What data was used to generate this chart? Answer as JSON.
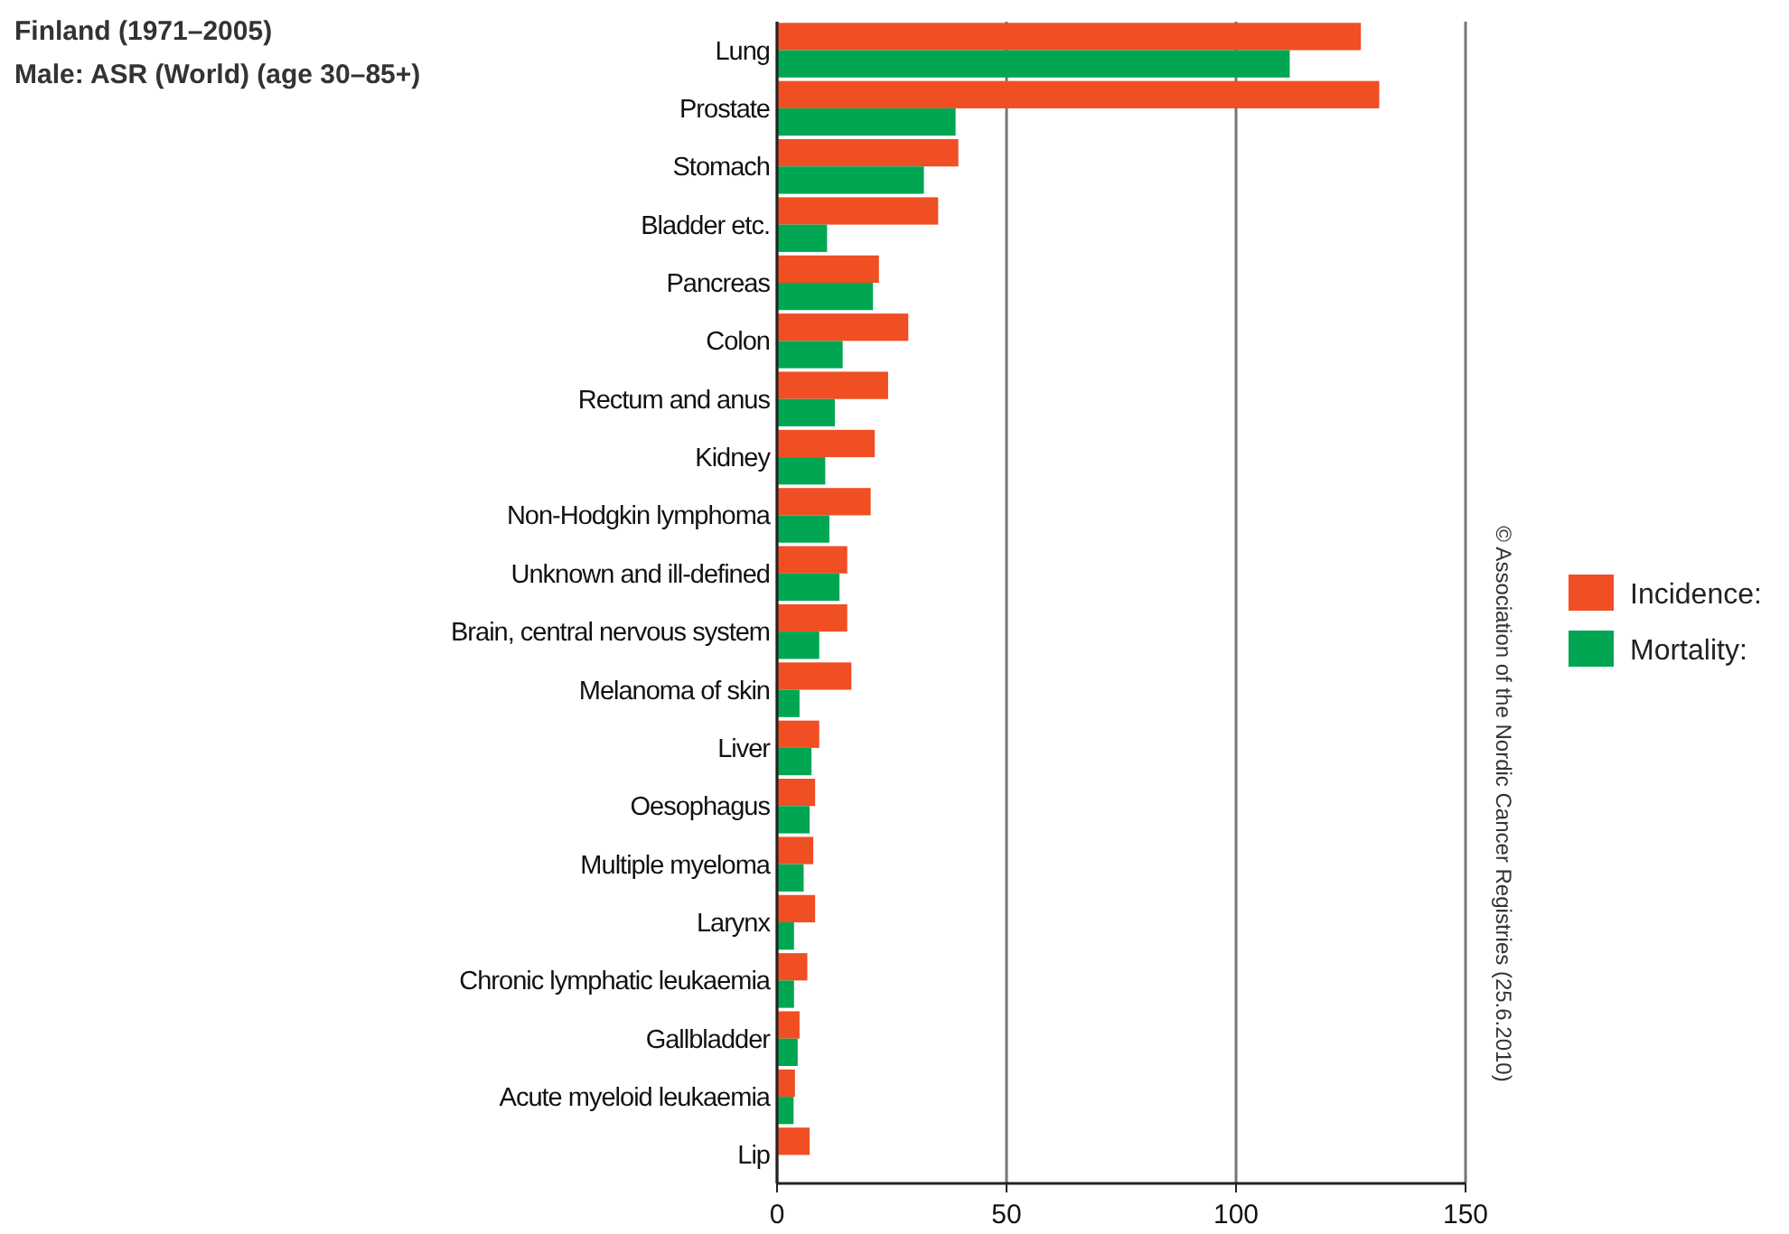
{
  "chart_data": {
    "type": "bar",
    "orientation": "horizontal",
    "title": "Finland (1971–2005)",
    "subtitle": "Male: ASR (World) (age 30–85+)",
    "categories": [
      "Lung",
      "Prostate",
      "Stomach",
      "Bladder etc.",
      "Pancreas",
      "Colon",
      "Rectum and anus",
      "Kidney",
      "Non-Hodgkin lymphoma",
      "Unknown and ill-defined",
      "Brain, central nervous system",
      "Melanoma of skin",
      "Liver",
      "Oesophagus",
      "Multiple myeloma",
      "Larynx",
      "Chronic lymphatic leukaemia",
      "Gallbladder",
      "Acute myeloid leukaemia",
      "Lip"
    ],
    "series": [
      {
        "name": "Incidence:",
        "color": "#f04e23",
        "values": [
          127.2,
          131.2,
          39.5,
          35.1,
          22.2,
          28.6,
          24.2,
          21.3,
          20.4,
          15.3,
          15.3,
          16.2,
          9.2,
          8.3,
          7.9,
          8.3,
          6.6,
          4.9,
          3.9,
          7.1
        ]
      },
      {
        "name": "Mortality:",
        "color": "#00a651",
        "values": [
          111.7,
          38.9,
          32,
          10.9,
          20.9,
          14.3,
          12.6,
          10.5,
          11.4,
          13.6,
          9.2,
          4.9,
          7.5,
          7.1,
          5.8,
          3.7,
          3.7,
          4.5,
          3.6,
          null
        ]
      }
    ],
    "xlim": [
      0,
      150
    ],
    "xticks": [
      0,
      50,
      100,
      150
    ],
    "grid": "x",
    "legend": "right",
    "annotations": [
      "© Association of the Nordic Cancer Registries (25.6.2010)"
    ]
  }
}
